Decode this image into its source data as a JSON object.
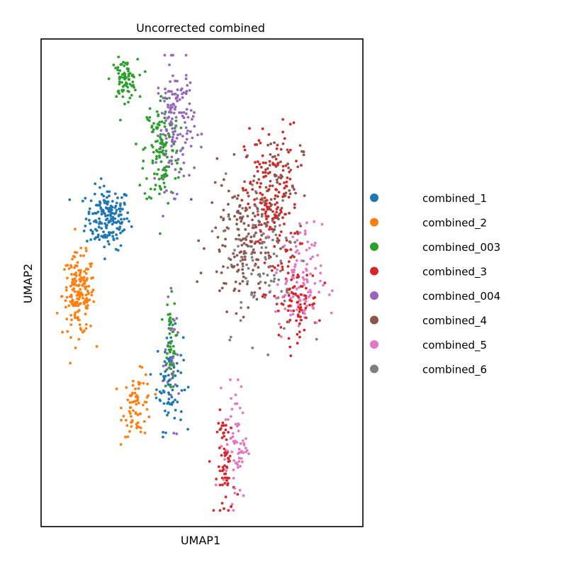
{
  "chart_data": {
    "type": "scatter",
    "title": "Uncorrected combined",
    "xlabel": "UMAP1",
    "ylabel": "UMAP2",
    "xlim": [
      -12,
      12
    ],
    "ylim": [
      -12,
      12
    ],
    "grid": false,
    "ticks": false,
    "legend_position": "right",
    "series": [
      {
        "name": "combined_1",
        "color": "#1f77b4",
        "points": 260,
        "clusters": [
          [
            -7.0,
            3.2,
            1.5,
            1.4,
            0.7
          ],
          [
            -2.4,
            -4.8,
            0.9,
            2.2,
            0.3
          ]
        ]
      },
      {
        "name": "combined_2",
        "color": "#ff7f0e",
        "points": 250,
        "clusters": [
          [
            -9.2,
            -0.6,
            1.1,
            1.8,
            0.7
          ],
          [
            -4.8,
            -6.0,
            1.0,
            1.4,
            0.3
          ]
        ]
      },
      {
        "name": "combined_003",
        "color": "#2ca02c",
        "points": 260,
        "clusters": [
          [
            -5.8,
            10.0,
            0.9,
            0.9,
            0.3
          ],
          [
            -3.0,
            6.5,
            1.2,
            2.6,
            0.5
          ],
          [
            -2.4,
            -3.0,
            0.4,
            2.0,
            0.2
          ]
        ]
      },
      {
        "name": "combined_3",
        "color": "#d62728",
        "points": 320,
        "clusters": [
          [
            5.2,
            3.8,
            1.8,
            3.6,
            0.55
          ],
          [
            7.0,
            -1.0,
            1.5,
            1.5,
            0.25
          ],
          [
            1.8,
            -9.0,
            0.6,
            2.4,
            0.2
          ]
        ]
      },
      {
        "name": "combined_004",
        "color": "#9467bd",
        "points": 190,
        "clusters": [
          [
            -2.0,
            7.8,
            1.3,
            2.8,
            0.8
          ],
          [
            -2.2,
            -4.0,
            0.5,
            2.5,
            0.2
          ]
        ]
      },
      {
        "name": "combined_4",
        "color": "#8c564b",
        "points": 220,
        "clusters": [
          [
            3.0,
            2.0,
            2.3,
            3.0,
            0.7
          ],
          [
            5.5,
            5.0,
            1.8,
            2.2,
            0.3
          ]
        ]
      },
      {
        "name": "combined_5",
        "color": "#e377c2",
        "points": 180,
        "clusters": [
          [
            7.2,
            0.0,
            1.6,
            2.6,
            0.6
          ],
          [
            2.5,
            -7.8,
            0.8,
            2.6,
            0.4
          ]
        ]
      },
      {
        "name": "combined_6",
        "color": "#7f7f7f",
        "points": 110,
        "clusters": [
          [
            4.5,
            1.5,
            2.6,
            3.6,
            1.0
          ]
        ]
      }
    ]
  }
}
